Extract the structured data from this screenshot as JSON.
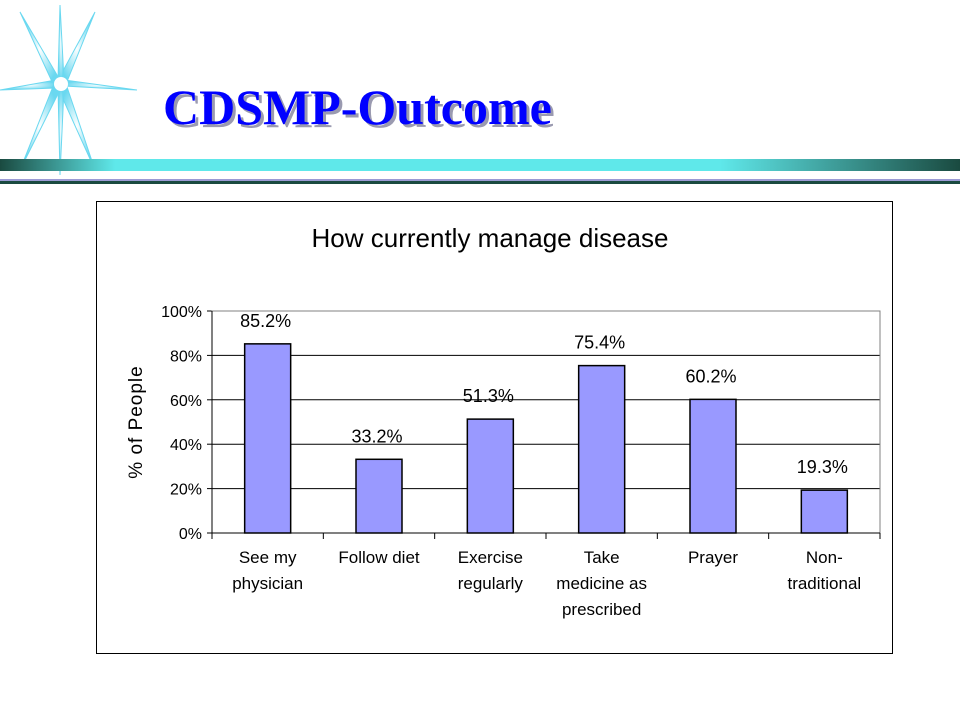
{
  "slide": {
    "title": "CDSMP-Outcome",
    "accent_colors": {
      "title": "#0000ff",
      "rule_light": "#5fe8ea",
      "rule_dark": "#1a4a40",
      "rule_lower": "#9b9bd4",
      "star": "#6ad8f0"
    },
    "decoration": "star-burst-icon"
  },
  "chart_data": {
    "type": "bar",
    "title": "How currently manage disease",
    "ylabel": "% of People",
    "xlabel": "",
    "ylim": [
      0,
      100
    ],
    "yticks": [
      0,
      20,
      40,
      60,
      80,
      100
    ],
    "ytick_labels": [
      "0%",
      "20%",
      "40%",
      "60%",
      "80%",
      "100%"
    ],
    "grid": "horizontal",
    "legend": "none",
    "bar_color": "#9999ff",
    "categories": [
      [
        "See my",
        "physician"
      ],
      [
        "Follow diet"
      ],
      [
        "Exercise",
        "regularly"
      ],
      [
        "Take",
        "medicine as",
        "prescribed"
      ],
      [
        "Prayer"
      ],
      [
        "Non-",
        "traditional"
      ]
    ],
    "values": [
      85.2,
      33.2,
      51.3,
      75.4,
      60.2,
      19.3
    ],
    "data_labels": [
      "85.2%",
      "33.2%",
      "51.3%",
      "75.4%",
      "60.2%",
      "19.3%"
    ]
  }
}
